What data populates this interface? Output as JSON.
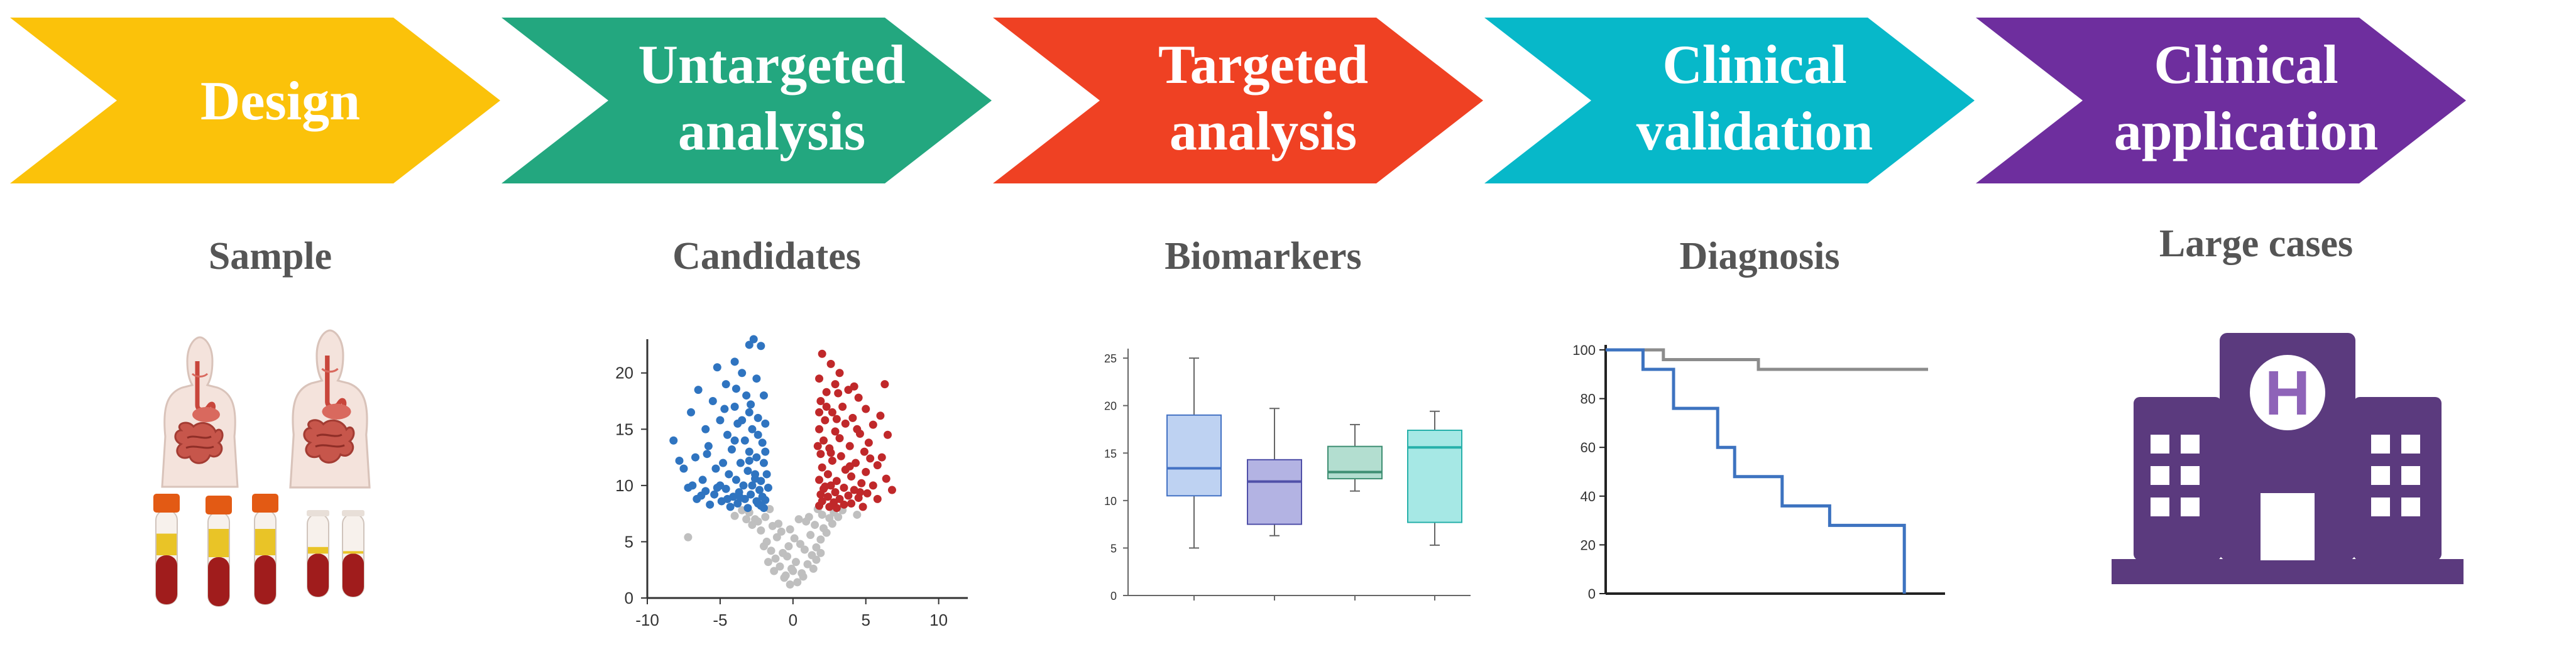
{
  "workflow": {
    "stages": [
      {
        "lines": [
          "Design"
        ],
        "color": "#FBC20A"
      },
      {
        "lines": [
          "Untargeted",
          "analysis"
        ],
        "color": "#23A77F"
      },
      {
        "lines": [
          "Targeted",
          "analysis"
        ],
        "color": "#EF4123"
      },
      {
        "lines": [
          "Clinical",
          "validation"
        ],
        "color": "#07B8C9"
      },
      {
        "lines": [
          "Clinical",
          "application"
        ],
        "color": "#6E2E9E"
      }
    ],
    "sections": [
      "Sample",
      "Candidates",
      "Biomarkers",
      "Diagnosis",
      "Large cases"
    ]
  },
  "icons": {
    "sample": [
      "human-body-digestive-icon",
      "human-body-digestive-icon",
      "blood-tube-icon",
      "blood-tube-icon",
      "blood-tube-icon",
      "blood-tube-icon",
      "blood-tube-icon"
    ],
    "hospital": {
      "name": "hospital-building-icon",
      "letter": "H",
      "color": "#5B3A7E",
      "accent": "#8E63B8"
    }
  },
  "chart_data": [
    {
      "type": "scatter",
      "xlim": [
        -10,
        12
      ],
      "ylim": [
        0,
        23
      ],
      "x_ticks": [
        -10,
        -5,
        0,
        5,
        10
      ],
      "y_ticks": [
        0,
        5,
        10,
        15,
        20
      ],
      "colors": {
        "down": "#2F74C0",
        "up": "#C0282A",
        "ns": "#BFBFBF"
      },
      "points": {
        "down": [
          [
            -2.7,
            23
          ],
          [
            -3.0,
            22.5
          ],
          [
            -2.2,
            22.4
          ],
          [
            -4.0,
            21
          ],
          [
            -5.2,
            20.5
          ],
          [
            -3.5,
            20
          ],
          [
            -2.5,
            19.5
          ],
          [
            -4.6,
            19
          ],
          [
            -6.5,
            18.5
          ],
          [
            -3.2,
            18
          ],
          [
            -2.0,
            18
          ],
          [
            -5.5,
            17.5
          ],
          [
            -4.0,
            17
          ],
          [
            -7.0,
            16.5
          ],
          [
            -3.0,
            16.5
          ],
          [
            -2.4,
            16
          ],
          [
            -5.0,
            15.8
          ],
          [
            -3.8,
            15.5
          ],
          [
            -6.0,
            15
          ],
          [
            -2.8,
            15
          ],
          [
            -4.5,
            14.5
          ],
          [
            -8.2,
            14
          ],
          [
            -3.3,
            14
          ],
          [
            -2.1,
            13.8
          ],
          [
            -5.8,
            13.5
          ],
          [
            -4.2,
            13.2
          ],
          [
            -3.0,
            13
          ],
          [
            -6.7,
            12.5
          ],
          [
            -2.5,
            12.5
          ],
          [
            -4.8,
            12
          ],
          [
            -3.6,
            12
          ],
          [
            -2.0,
            12
          ],
          [
            -7.5,
            11.5
          ],
          [
            -5.3,
            11.5
          ],
          [
            -3.1,
            11.3
          ],
          [
            -4.4,
            11
          ],
          [
            -2.6,
            11
          ],
          [
            -6.2,
            10.5
          ],
          [
            -3.9,
            10.5
          ],
          [
            -2.2,
            10.4
          ],
          [
            -5.0,
            10
          ],
          [
            -3.4,
            10
          ],
          [
            -2.8,
            10
          ],
          [
            -7.2,
            9.8
          ],
          [
            -4.6,
            9.7
          ],
          [
            -2.3,
            9.6
          ],
          [
            -6.0,
            9.5
          ],
          [
            -3.7,
            9.4
          ],
          [
            -5.4,
            9.2
          ],
          [
            -2.9,
            9.2
          ],
          [
            -4.1,
            9
          ],
          [
            -2.1,
            9
          ],
          [
            -6.6,
            8.8
          ],
          [
            -3.3,
            8.8
          ],
          [
            -4.9,
            8.6
          ],
          [
            -2.5,
            8.6
          ],
          [
            -3.8,
            8.4
          ],
          [
            -5.7,
            8.3
          ],
          [
            -2.2,
            8.2
          ],
          [
            -4.3,
            8.1
          ],
          [
            -3.1,
            8
          ],
          [
            -2.0,
            8
          ],
          [
            -1.8,
            11
          ],
          [
            -1.9,
            13
          ],
          [
            -1.9,
            15.5
          ],
          [
            -1.7,
            9.8
          ],
          [
            -2.4,
            14.5
          ],
          [
            -3.5,
            15.8
          ],
          [
            -4.7,
            16.8
          ],
          [
            -3.9,
            18.6
          ],
          [
            -2.9,
            17.2
          ],
          [
            -5.9,
            12.8
          ],
          [
            -6.9,
            10
          ],
          [
            -7.8,
            12.2
          ],
          [
            -4.0,
            14
          ],
          [
            -3.0,
            12.2
          ],
          [
            -2.6,
            10.6
          ],
          [
            -5.2,
            9.8
          ],
          [
            -3.6,
            8.9
          ],
          [
            -2.4,
            8.4
          ],
          [
            -1.9,
            8.7
          ],
          [
            -4.5,
            8.8
          ],
          [
            -6.3,
            9.1
          ]
        ],
        "up": [
          [
            2.0,
            21.7
          ],
          [
            2.6,
            20.8
          ],
          [
            3.2,
            20
          ],
          [
            1.8,
            19.5
          ],
          [
            2.9,
            19
          ],
          [
            3.8,
            18.5
          ],
          [
            6.3,
            19
          ],
          [
            2.3,
            18.3
          ],
          [
            4.5,
            17.8
          ],
          [
            1.9,
            17.5
          ],
          [
            3.4,
            17
          ],
          [
            5.0,
            16.8
          ],
          [
            2.7,
            16.5
          ],
          [
            4.1,
            16
          ],
          [
            6.0,
            16.2
          ],
          [
            2.2,
            15.8
          ],
          [
            3.6,
            15.5
          ],
          [
            5.5,
            15.4
          ],
          [
            1.8,
            15
          ],
          [
            2.9,
            14.8
          ],
          [
            4.6,
            14.6
          ],
          [
            3.2,
            14.2
          ],
          [
            6.5,
            14.5
          ],
          [
            2.1,
            14
          ],
          [
            5.2,
            13.8
          ],
          [
            3.9,
            13.5
          ],
          [
            2.5,
            13.3
          ],
          [
            4.9,
            13
          ],
          [
            1.9,
            12.8
          ],
          [
            3.3,
            12.6
          ],
          [
            6.1,
            12.5
          ],
          [
            2.7,
            12.2
          ],
          [
            4.3,
            12
          ],
          [
            5.8,
            11.8
          ],
          [
            2.0,
            11.6
          ],
          [
            3.6,
            11.4
          ],
          [
            5.0,
            11.2
          ],
          [
            2.4,
            11
          ],
          [
            4.0,
            10.8
          ],
          [
            6.4,
            10.6
          ],
          [
            1.8,
            10.5
          ],
          [
            3.0,
            10.4
          ],
          [
            4.7,
            10.2
          ],
          [
            2.6,
            10
          ],
          [
            5.5,
            10
          ],
          [
            3.5,
            9.8
          ],
          [
            2.1,
            9.7
          ],
          [
            4.2,
            9.6
          ],
          [
            6.8,
            9.6
          ],
          [
            2.9,
            9.4
          ],
          [
            5.1,
            9.3
          ],
          [
            1.9,
            9.2
          ],
          [
            3.8,
            9.1
          ],
          [
            2.4,
            9
          ],
          [
            4.5,
            8.9
          ],
          [
            3.2,
            8.8
          ],
          [
            5.8,
            8.8
          ],
          [
            2.0,
            8.6
          ],
          [
            2.8,
            8.5
          ],
          [
            4.0,
            8.4
          ],
          [
            3.5,
            8.3
          ],
          [
            1.8,
            8.2
          ],
          [
            2.5,
            8.1
          ],
          [
            4.8,
            8.1
          ],
          [
            3.0,
            8
          ],
          [
            1.7,
            13.5
          ],
          [
            1.8,
            16.5
          ],
          [
            2.3,
            17
          ],
          [
            3.1,
            18.2
          ],
          [
            4.2,
            18.8
          ],
          [
            2.6,
            12.9
          ],
          [
            3.9,
            11.7
          ],
          [
            5.3,
            12.4
          ],
          [
            4.4,
            15
          ],
          [
            3.0,
            15.9
          ],
          [
            2.2,
            9.9
          ],
          [
            4.6,
            9.4
          ]
        ],
        "ns": [
          [
            -0.2,
            1.2
          ],
          [
            0.3,
            1.4
          ],
          [
            -0.5,
            2
          ],
          [
            0.6,
            2.2
          ],
          [
            -0.9,
            2.8
          ],
          [
            1.0,
            3
          ],
          [
            -1.2,
            3.5
          ],
          [
            1.3,
            3.8
          ],
          [
            -0.1,
            2.6
          ],
          [
            0.2,
            3.2
          ],
          [
            -1.5,
            4.2
          ],
          [
            1.6,
            4.5
          ],
          [
            -0.7,
            4
          ],
          [
            0.8,
            4.3
          ],
          [
            -1.8,
            5
          ],
          [
            1.9,
            5.2
          ],
          [
            -1.1,
            5.4
          ],
          [
            1.2,
            5.6
          ],
          [
            -0.4,
            3.7
          ],
          [
            0.5,
            4.8
          ],
          [
            -2.2,
            6
          ],
          [
            2.1,
            6.2
          ],
          [
            -1.4,
            6.4
          ],
          [
            1.5,
            6.5
          ],
          [
            -2.6,
            7
          ],
          [
            2.5,
            7.1
          ],
          [
            -1.9,
            7.2
          ],
          [
            2.0,
            7.4
          ],
          [
            -3.0,
            7.6
          ],
          [
            2.8,
            7.6
          ],
          [
            -0.8,
            5.9
          ],
          [
            0.9,
            6.8
          ],
          [
            -3.5,
            7.8
          ],
          [
            3.4,
            7.8
          ],
          [
            -1.6,
            7.9
          ],
          [
            1.7,
            7.9
          ],
          [
            -2.4,
            6.8
          ],
          [
            2.3,
            5.8
          ],
          [
            -0.3,
            4.6
          ],
          [
            0.1,
            5.3
          ],
          [
            -1.0,
            6.6
          ],
          [
            1.1,
            7.2
          ],
          [
            -2.8,
            6.5
          ],
          [
            2.7,
            6.6
          ],
          [
            -7.2,
            5.4
          ],
          [
            -4.0,
            7.3
          ],
          [
            4.4,
            7.4
          ],
          [
            -0.6,
            1.8
          ],
          [
            0.7,
            1.9
          ],
          [
            0.0,
            2.4
          ],
          [
            -1.3,
            2.4
          ],
          [
            1.4,
            2.6
          ],
          [
            -2.0,
            4.6
          ],
          [
            1.9,
            4.0
          ],
          [
            -0.2,
            6.1
          ],
          [
            0.4,
            7.0
          ],
          [
            -3.2,
            7.0
          ],
          [
            3.1,
            7.2
          ],
          [
            -1.7,
            3.2
          ],
          [
            1.6,
            3.4
          ]
        ]
      }
    },
    {
      "type": "box",
      "ylim": [
        0,
        26
      ],
      "y_ticks": [
        0,
        5,
        10,
        15,
        20,
        25
      ],
      "boxes": [
        {
          "min": 5,
          "q1": 10.5,
          "median": 13.4,
          "q3": 19,
          "max": 25,
          "fill": "#BED2F2",
          "stroke": "#4472C4"
        },
        {
          "min": 6.3,
          "q1": 7.5,
          "median": 12,
          "q3": 14.3,
          "max": 19.7,
          "fill": "#B3B3E3",
          "stroke": "#5050A8"
        },
        {
          "min": 11,
          "q1": 12.3,
          "median": 13,
          "q3": 15.7,
          "max": 18,
          "fill": "#B3DED0",
          "stroke": "#3F8F73"
        },
        {
          "min": 5.3,
          "q1": 7.7,
          "median": 15.6,
          "q3": 17.4,
          "max": 19.4,
          "fill": "#A6E8E5",
          "stroke": "#27B0AA"
        }
      ]
    },
    {
      "type": "line",
      "xlim": [
        0,
        100
      ],
      "ylim": [
        0,
        100
      ],
      "y_ticks": [
        0,
        20,
        40,
        60,
        80,
        100
      ],
      "series": [
        {
          "color": "#8C8C8C",
          "x": [
            0,
            17,
            17,
            45,
            45,
            95
          ],
          "y": [
            100,
            100,
            96,
            96,
            92,
            92
          ]
        },
        {
          "color": "#3D73C0",
          "x": [
            0,
            11,
            11,
            20,
            20,
            33,
            33,
            38,
            38,
            52,
            52,
            66,
            66,
            88,
            88
          ],
          "y": [
            100,
            100,
            92,
            92,
            76,
            76,
            60,
            60,
            48,
            48,
            36,
            36,
            28,
            28,
            0
          ]
        }
      ]
    }
  ]
}
